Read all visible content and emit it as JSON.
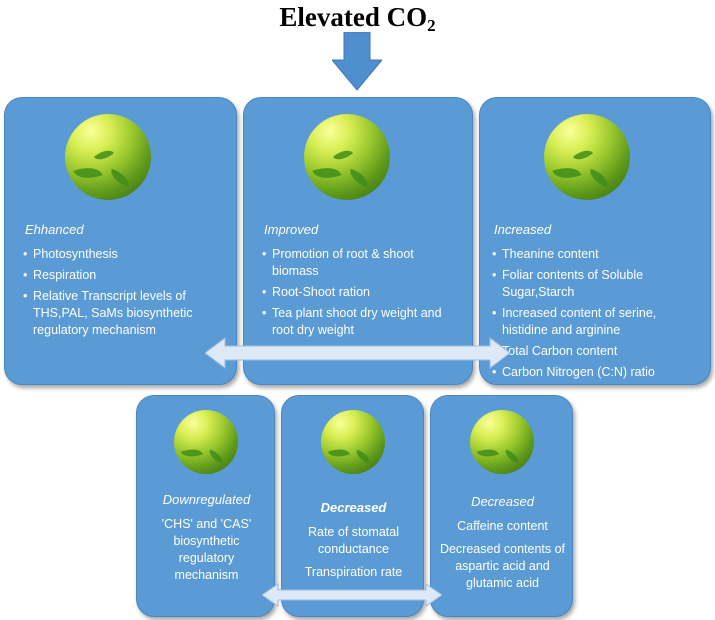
{
  "title": {
    "main": "Elevated CO",
    "sub": "2"
  },
  "top_boxes": [
    {
      "heading": "Ehhanced",
      "items": [
        "Photosynthesis",
        "Respiration",
        "Relative Transcript levels of THS,PAL, SaMs biosynthetic regulatory mechanism"
      ]
    },
    {
      "heading": "Improved",
      "items": [
        "Promotion  of root & shoot biomass",
        "Root-Shoot ration",
        "Tea plant shoot dry weight and root dry weight"
      ]
    },
    {
      "heading": "Increased",
      "items": [
        "Theanine content",
        "Foliar contents of Soluble Sugar,Starch",
        "Increased content of serine, histidine and arginine",
        "Total Carbon content",
        "Carbon Nitrogen (C:N) ratio"
      ]
    }
  ],
  "bottom_boxes": [
    {
      "heading": "Downregulated",
      "lines": [
        "'CHS' and 'CAS' biosynthetic regulatory mechanism"
      ]
    },
    {
      "heading": "Decreased",
      "lines": [
        "Rate of stomatal conductance",
        "Transpiration rate"
      ]
    },
    {
      "heading": "Decreased",
      "lines": [
        "Caffeine content",
        "Decreased contents of aspartic acid and glutamic acid"
      ]
    }
  ],
  "colors": {
    "box": "#5b9bd5",
    "arrow": "#4f8fd0",
    "connector": "#dde9f6",
    "text": "#ffffff"
  },
  "icons": {
    "photo": "tea-leaf-photo"
  }
}
